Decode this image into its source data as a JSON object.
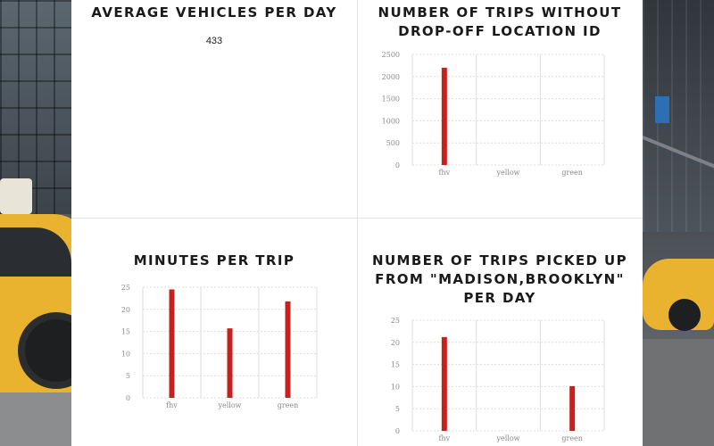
{
  "colors": {
    "bar": "#c3221e",
    "panel": "#ffffff",
    "grid": "#dcdcdc"
  },
  "card1": {
    "title": "AVERAGE VEHICLES PER DAY",
    "value": "433"
  },
  "card2": {
    "title_line1": "NUMBER OF TRIPS WITHOUT",
    "title_line2": "DROP-OFF LOCATION ID"
  },
  "card3": {
    "title": "MINUTES PER TRIP"
  },
  "card4": {
    "title_line1": "NUMBER OF TRIPS PICKED UP",
    "title_line2": "FROM \"MADISON,BROOKLYN\"",
    "title_line3": "PER DAY"
  },
  "chart_data": [
    {
      "id": "trips-without-dropoff",
      "type": "bar",
      "title": "NUMBER OF TRIPS WITHOUT DROP-OFF LOCATION ID",
      "categories": [
        "fhv",
        "yellow",
        "green"
      ],
      "values": [
        2200,
        0,
        0
      ],
      "ylim": [
        0,
        2500
      ],
      "yticks": [
        0,
        500,
        1000,
        1500,
        2000,
        2500
      ],
      "xlabel": "",
      "ylabel": ""
    },
    {
      "id": "minutes-per-trip",
      "type": "bar",
      "title": "MINUTES PER TRIP",
      "categories": [
        "fhv",
        "yellow",
        "green"
      ],
      "values": [
        24.5,
        15.7,
        21.8
      ],
      "ylim": [
        0,
        25
      ],
      "yticks": [
        0,
        5,
        10,
        15,
        20,
        25
      ],
      "xlabel": "",
      "ylabel": ""
    },
    {
      "id": "trips-madison-brooklyn",
      "type": "bar",
      "title": "NUMBER OF TRIPS PICKED UP FROM \"MADISON,BROOKLYN\" PER DAY",
      "categories": [
        "fhv",
        "yellow",
        "green"
      ],
      "values": [
        21.2,
        0,
        10.1
      ],
      "ylim": [
        0,
        25
      ],
      "yticks": [
        0,
        5,
        10,
        15,
        20,
        25
      ],
      "xlabel": "",
      "ylabel": ""
    }
  ]
}
